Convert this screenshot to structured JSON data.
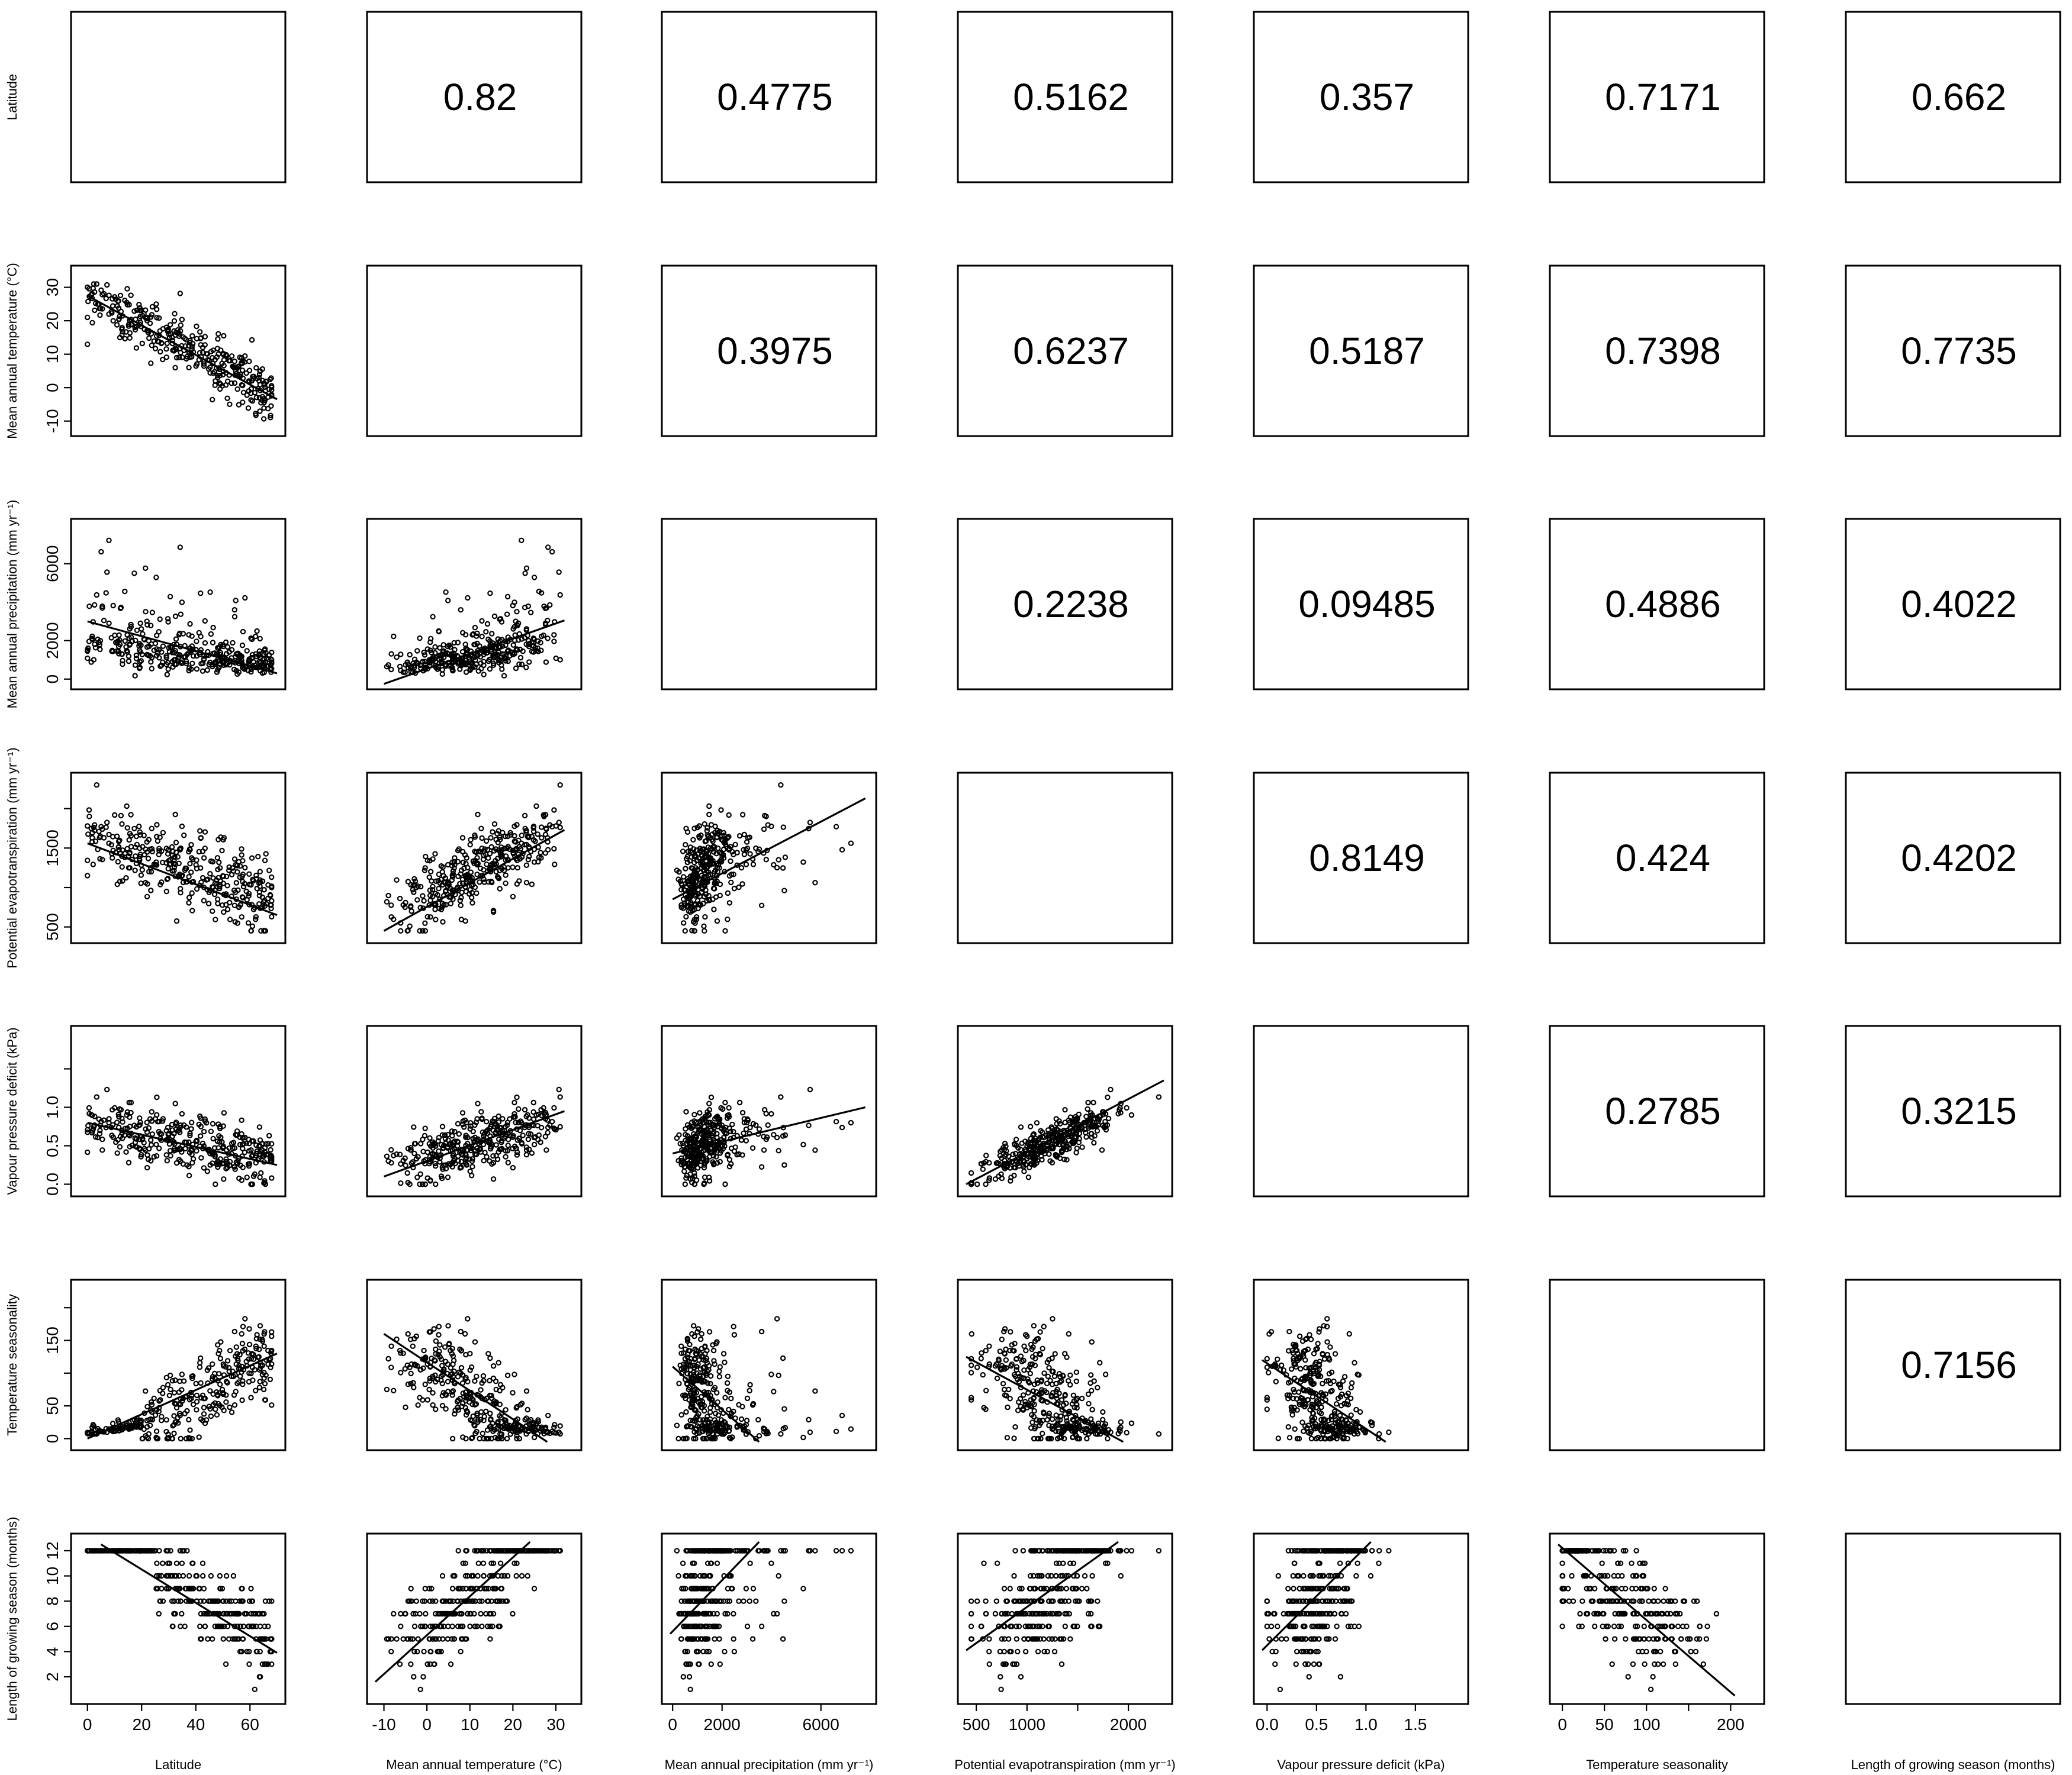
{
  "chart_data": {
    "type": "scatter",
    "layout": "pairs-matrix",
    "variables": [
      {
        "label": "Latitude",
        "ticks": [
          0,
          20,
          40,
          60
        ],
        "range": [
          -3,
          70
        ]
      },
      {
        "label": "Mean annual temperature (°C)",
        "ticks": [
          -10,
          0,
          10,
          20,
          30
        ],
        "range": [
          -12,
          34
        ]
      },
      {
        "label": "Mean annual precipitation (mm yr⁻¹)",
        "ticks": [
          0,
          2000,
          6000
        ],
        "tick_labels": [
          "0",
          "2000",
          "6000"
        ],
        "range": [
          -100,
          7900
        ]
      },
      {
        "label": "Potential evapotranspiration (mm yr⁻¹)",
        "ticks": [
          500,
          1000,
          1500,
          2000
        ],
        "x_tick_labels": [
          "500",
          "1000",
          "",
          "2000"
        ],
        "y_tick_labels": [
          "500",
          "",
          "1500",
          ""
        ],
        "range": [
          400,
          2350
        ]
      },
      {
        "label": "Vapour pressure deficit (kPa)",
        "ticks": [
          0.0,
          0.5,
          1.0,
          1.5
        ],
        "x_tick_labels": [
          "0.0",
          "0.5",
          "1.0",
          "1.5"
        ],
        "y_tick_labels": [
          "0.0",
          "0.5",
          "1.0",
          ""
        ],
        "range": [
          -0.05,
          1.95
        ]
      },
      {
        "label": "Temperature seasonality",
        "ticks": [
          0,
          50,
          100,
          150,
          200
        ],
        "x_tick_labels": [
          "0",
          "50",
          "100",
          "",
          "200"
        ],
        "y_tick_labels": [
          "0",
          "50",
          "",
          "150",
          ""
        ],
        "range": [
          -5,
          230
        ]
      },
      {
        "label": "Length of growing season (months)",
        "ticks": [
          2,
          4,
          6,
          8,
          10,
          12
        ],
        "range": [
          0.5,
          12.7
        ]
      }
    ],
    "upper_panel_values": [
      [
        "",
        "0.82",
        "0.4775",
        "0.5162",
        "0.357",
        "0.7171",
        "0.662"
      ],
      [
        "",
        "",
        "0.3975",
        "0.6237",
        "0.5187",
        "0.7398",
        "0.7735"
      ],
      [
        "",
        "",
        "",
        "0.2238",
        "0.09485",
        "0.4886",
        "0.4022"
      ],
      [
        "",
        "",
        "",
        "",
        "0.8149",
        "0.424",
        "0.4202"
      ],
      [
        "",
        "",
        "",
        "",
        "",
        "0.2785",
        "0.3215"
      ],
      [
        "",
        "",
        "",
        "",
        "",
        "",
        "0.7156"
      ],
      [
        "",
        "",
        "",
        "",
        "",
        "",
        ""
      ]
    ],
    "lower_panels": [
      {
        "row": 1,
        "col": 0,
        "points": 350,
        "fit": [
          [
            0,
            27.5
          ],
          [
            70,
            -3.5
          ]
        ]
      },
      {
        "row": 2,
        "col": 0,
        "points": 350,
        "fit": [
          [
            0,
            3000
          ],
          [
            70,
            300
          ]
        ]
      },
      {
        "row": 2,
        "col": 1,
        "points": 350,
        "fit": [
          [
            -10,
            -250
          ],
          [
            32,
            3050
          ]
        ]
      },
      {
        "row": 3,
        "col": 0,
        "points": 350,
        "fit": [
          [
            0,
            1560
          ],
          [
            70,
            650
          ]
        ]
      },
      {
        "row": 3,
        "col": 1,
        "points": 350,
        "fit": [
          [
            -10,
            450
          ],
          [
            32,
            1730
          ]
        ]
      },
      {
        "row": 3,
        "col": 2,
        "points": 350,
        "fit": [
          [
            0,
            850
          ],
          [
            7800,
            2130
          ]
        ]
      },
      {
        "row": 4,
        "col": 0,
        "points": 350,
        "fit": [
          [
            0,
            0.8
          ],
          [
            70,
            0.25
          ]
        ]
      },
      {
        "row": 4,
        "col": 1,
        "points": 350,
        "fit": [
          [
            -10,
            0.1
          ],
          [
            32,
            0.95
          ]
        ]
      },
      {
        "row": 4,
        "col": 2,
        "points": 350,
        "fit": [
          [
            0,
            0.4
          ],
          [
            7800,
            1.0
          ]
        ]
      },
      {
        "row": 4,
        "col": 3,
        "points": 350,
        "fit": [
          [
            400,
            0.0
          ],
          [
            2350,
            1.35
          ]
        ]
      },
      {
        "row": 5,
        "col": 0,
        "points": 350,
        "fit": [
          [
            0,
            0
          ],
          [
            70,
            130
          ]
        ]
      },
      {
        "row": 5,
        "col": 1,
        "points": 350,
        "fit": [
          [
            -10,
            160
          ],
          [
            28,
            -5
          ]
        ]
      },
      {
        "row": 5,
        "col": 2,
        "points": 350,
        "fit": [
          [
            0,
            110
          ],
          [
            3500,
            -5
          ]
        ]
      },
      {
        "row": 5,
        "col": 3,
        "points": 350,
        "fit": [
          [
            400,
            125
          ],
          [
            1950,
            -5
          ]
        ]
      },
      {
        "row": 5,
        "col": 4,
        "points": 350,
        "fit": [
          [
            -0.05,
            120
          ],
          [
            1.2,
            -5
          ]
        ]
      },
      {
        "row": 6,
        "col": 0,
        "points": 350,
        "fit": [
          [
            5,
            12.5
          ],
          [
            70,
            3.9
          ]
        ]
      },
      {
        "row": 6,
        "col": 1,
        "points": 350,
        "fit": [
          [
            -12,
            1.6
          ],
          [
            24,
            12.7
          ]
        ]
      },
      {
        "row": 6,
        "col": 2,
        "points": 350,
        "fit": [
          [
            -100,
            5.4
          ],
          [
            3500,
            12.7
          ]
        ]
      },
      {
        "row": 6,
        "col": 3,
        "points": 350,
        "fit": [
          [
            400,
            4.1
          ],
          [
            1900,
            12.7
          ]
        ]
      },
      {
        "row": 6,
        "col": 4,
        "points": 350,
        "fit": [
          [
            -0.05,
            4.1
          ],
          [
            1.05,
            12.7
          ]
        ]
      },
      {
        "row": 6,
        "col": 5,
        "points": 350,
        "fit": [
          [
            -5,
            12.5
          ],
          [
            205,
            0.5
          ]
        ]
      }
    ],
    "colors": {
      "axes": "#000000",
      "points": "#000000",
      "background": "#ffffff"
    },
    "grid": false,
    "legend": "none",
    "title": ""
  }
}
